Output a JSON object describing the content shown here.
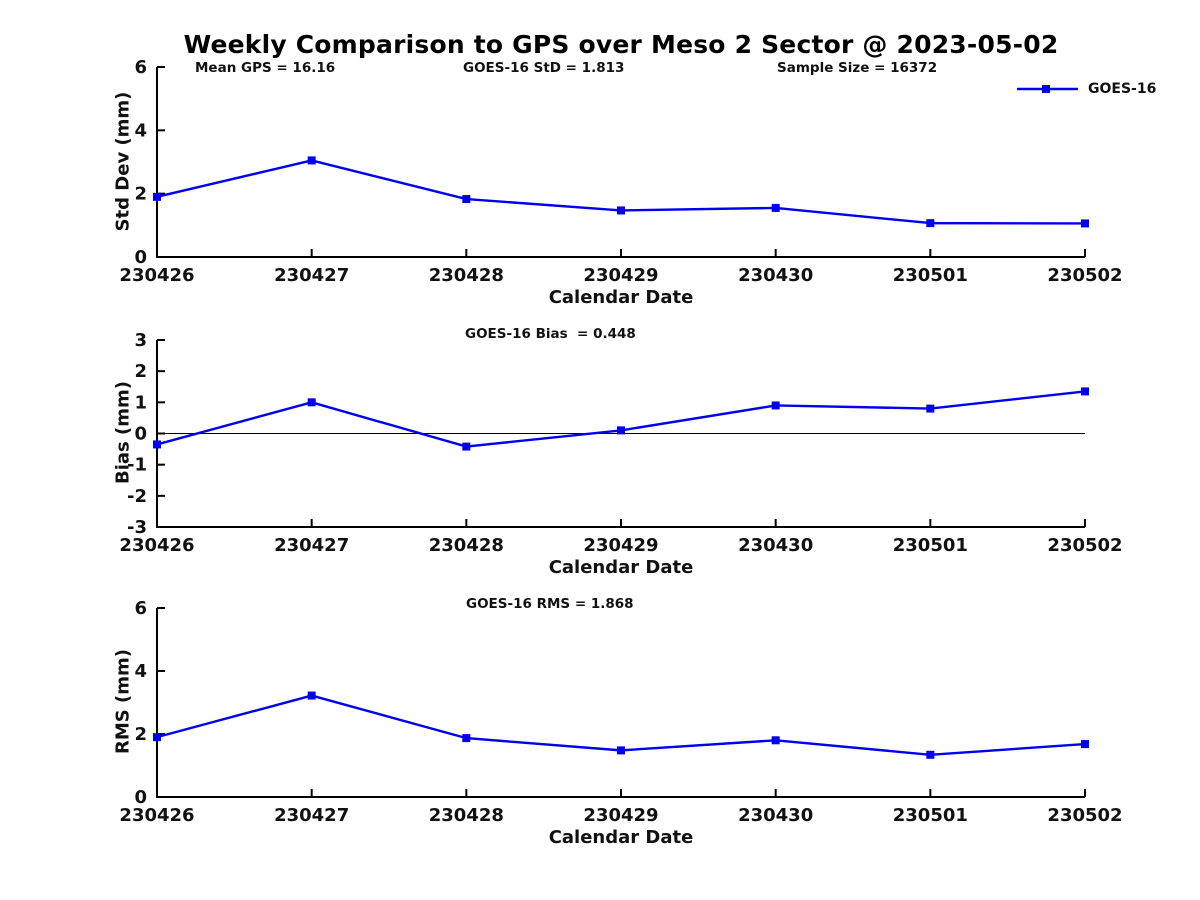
{
  "page": {
    "title": "Weekly Comparison to GPS over Meso 2 Sector @ 2023-05-02",
    "background": "#ffffff",
    "text_color": "#111111",
    "accent_blue": "#0000ee"
  },
  "legend": {
    "label": "GOES-16",
    "color": "#0000ee",
    "marker": "square"
  },
  "chart_data": [
    {
      "id": "std-dev",
      "type": "line",
      "categories": [
        "230426",
        "230427",
        "230428",
        "230429",
        "230430",
        "230501",
        "230502"
      ],
      "series": [
        {
          "name": "GOES-16",
          "color": "#0000ee",
          "marker": "square",
          "values": [
            1.9,
            3.05,
            1.83,
            1.47,
            1.55,
            1.07,
            1.06
          ]
        }
      ],
      "annotations": {
        "left": "Mean GPS = 16.16",
        "center": "GOES-16 StD = 1.813",
        "right": "Sample Size = 16372"
      },
      "xlabel": "Calendar Date",
      "ylabel": "Std Dev (mm)",
      "ylim": [
        0,
        6
      ],
      "yticks": [
        0,
        2,
        4,
        6
      ],
      "zero_line": false,
      "grid": false,
      "legend_position": "top-right-outside"
    },
    {
      "id": "bias",
      "type": "line",
      "categories": [
        "230426",
        "230427",
        "230428",
        "230429",
        "230430",
        "230501",
        "230502"
      ],
      "series": [
        {
          "name": "GOES-16",
          "color": "#0000ee",
          "marker": "square",
          "values": [
            -0.35,
            1.0,
            -0.42,
            0.1,
            0.9,
            0.8,
            1.35
          ]
        }
      ],
      "subtitle": "GOES-16 Bias  = 0.448",
      "xlabel": "Calendar Date",
      "ylabel": "Bias (mm)",
      "ylim": [
        -3,
        3
      ],
      "yticks": [
        -3,
        -2,
        -1,
        0,
        1,
        2,
        3
      ],
      "zero_line": true,
      "grid": false
    },
    {
      "id": "rms",
      "type": "line",
      "categories": [
        "230426",
        "230427",
        "230428",
        "230429",
        "230430",
        "230501",
        "230502"
      ],
      "series": [
        {
          "name": "GOES-16",
          "color": "#0000ee",
          "marker": "square",
          "values": [
            1.9,
            3.22,
            1.87,
            1.48,
            1.8,
            1.34,
            1.68
          ]
        }
      ],
      "subtitle": "GOES-16 RMS = 1.868",
      "xlabel": "Calendar Date",
      "ylabel": "RMS (mm)",
      "ylim": [
        0,
        6
      ],
      "yticks": [
        0,
        2,
        4,
        6
      ],
      "zero_line": false,
      "grid": false
    }
  ]
}
